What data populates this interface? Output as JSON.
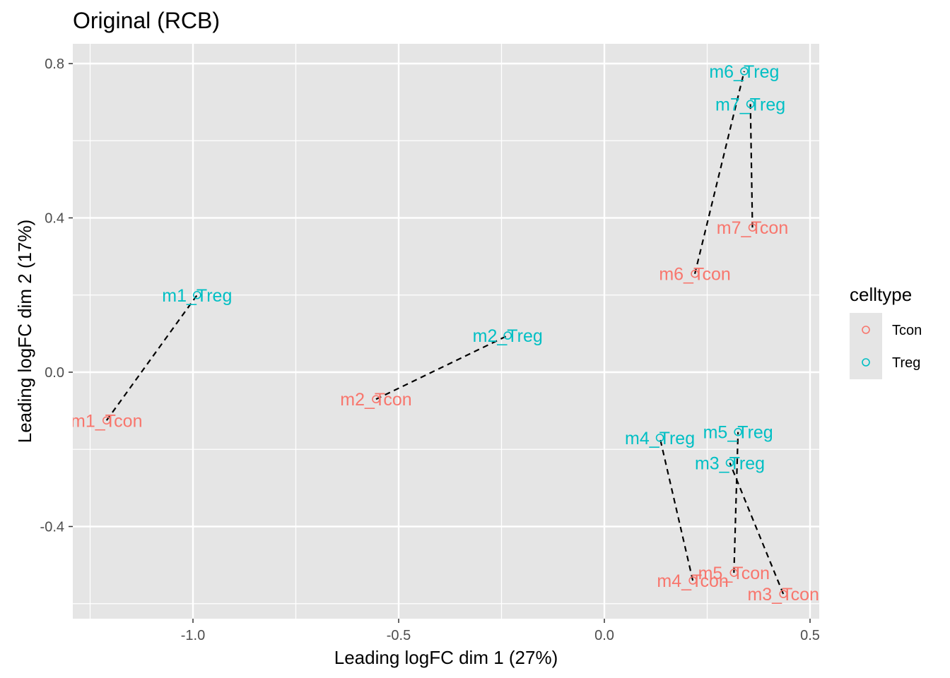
{
  "chart_data": {
    "type": "scatter",
    "title": "Original (RCB)",
    "xlabel": "Leading logFC dim 1 (27%)",
    "ylabel": "Leading logFC dim 2 (17%)",
    "xlim": [
      -1.3,
      0.52
    ],
    "ylim": [
      -0.64,
      0.85
    ],
    "x_ticks": [
      -1.0,
      -0.5,
      0.0,
      0.5
    ],
    "x_tick_labels": [
      "-1.0",
      "-0.5",
      "0.0",
      "0.5"
    ],
    "y_ticks": [
      0.8,
      0.4,
      0.0,
      -0.4
    ],
    "y_tick_labels": [
      "0.8",
      "0.4",
      "0.0",
      "-0.4"
    ],
    "grid": true,
    "legend": {
      "title": "celltype",
      "position": "right",
      "entries": [
        {
          "label": "Tcon",
          "color": "#F8766D"
        },
        {
          "label": "Treg",
          "color": "#00BFC4"
        }
      ]
    },
    "series": [
      {
        "name": "Tcon",
        "color": "#F8766D",
        "points": [
          {
            "label": "m1_Tcon",
            "x": -1.21,
            "y": -0.125
          },
          {
            "label": "m2_Tcon",
            "x": -0.555,
            "y": -0.07
          },
          {
            "label": "m3_Tcon",
            "x": 0.435,
            "y": -0.575
          },
          {
            "label": "m4_Tcon",
            "x": 0.215,
            "y": -0.54
          },
          {
            "label": "m5_Tcon",
            "x": 0.315,
            "y": -0.52
          },
          {
            "label": "m6_Tcon",
            "x": 0.22,
            "y": 0.255
          },
          {
            "label": "m7_Tcon",
            "x": 0.36,
            "y": 0.375
          }
        ]
      },
      {
        "name": "Treg",
        "color": "#00BFC4",
        "points": [
          {
            "label": "m1_Treg",
            "x": -0.99,
            "y": 0.2
          },
          {
            "label": "m2_Treg",
            "x": -0.235,
            "y": 0.095
          },
          {
            "label": "m3_Treg",
            "x": 0.305,
            "y": -0.235
          },
          {
            "label": "m4_Treg",
            "x": 0.135,
            "y": -0.17
          },
          {
            "label": "m5_Treg",
            "x": 0.325,
            "y": -0.155
          },
          {
            "label": "m6_Treg",
            "x": 0.34,
            "y": 0.78
          },
          {
            "label": "m7_Treg",
            "x": 0.355,
            "y": 0.695
          }
        ]
      }
    ],
    "pairs": [
      [
        "m1_Tcon",
        "m1_Treg"
      ],
      [
        "m2_Tcon",
        "m2_Treg"
      ],
      [
        "m3_Tcon",
        "m3_Treg"
      ],
      [
        "m4_Tcon",
        "m4_Treg"
      ],
      [
        "m5_Tcon",
        "m5_Treg"
      ],
      [
        "m6_Tcon",
        "m6_Treg"
      ],
      [
        "m7_Tcon",
        "m7_Treg"
      ]
    ],
    "colors": {
      "panel_bg": "#E5E5E5",
      "grid": "#FFFFFF",
      "text": "#000000",
      "tick_text": "#4D4D4D",
      "link": "#000000"
    }
  }
}
